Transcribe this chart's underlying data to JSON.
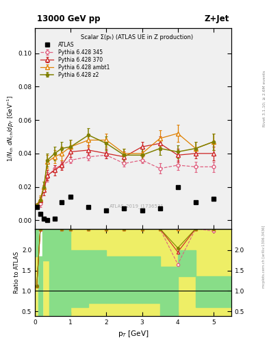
{
  "title_left": "13000 GeV pp",
  "title_right": "Z+Jet",
  "plot_title": "Scalar Σ(pₜ) (ATLAS UE in Z production)",
  "ylabel_main": "1/N$_{ch}$ dN$_{ch}$/dp$_T$ [GeV$^{-1}$]",
  "ylabel_ratio": "Ratio to ATLAS",
  "xlabel": "p$_T$ [GeV]",
  "right_label_top": "Rivet 3.1.10; ≥ 2.6M events",
  "watermark": "mcplots.cern.ch [arXiv:1306.3436]",
  "atlas_id": "ATLAS_2019_I1736531",
  "ylim_main": [
    -0.005,
    0.115
  ],
  "ylim_ratio": [
    0.39,
    2.52
  ],
  "yticks_main": [
    0.0,
    0.02,
    0.04,
    0.06,
    0.08,
    0.1
  ],
  "yticks_ratio": [
    0.5,
    1.0,
    1.5,
    2.0
  ],
  "xlim": [
    0.0,
    5.5
  ],
  "pt_atlas": [
    0.05,
    0.15,
    0.25,
    0.35,
    0.55,
    0.75,
    1.0,
    1.5,
    2.0,
    2.5,
    3.0,
    3.5,
    4.0,
    4.5,
    5.0
  ],
  "val_atlas": [
    0.008,
    0.004,
    0.001,
    0.0,
    0.001,
    0.011,
    0.014,
    0.008,
    0.006,
    0.007,
    0.006,
    0.007,
    0.02,
    0.011,
    0.013
  ],
  "pt_345": [
    0.05,
    0.15,
    0.25,
    0.35,
    0.55,
    0.75,
    1.0,
    1.5,
    2.0,
    2.5,
    3.0,
    3.5,
    4.0,
    4.5,
    5.0
  ],
  "val_345": [
    0.009,
    0.01,
    0.019,
    0.026,
    0.031,
    0.033,
    0.036,
    0.038,
    0.039,
    0.034,
    0.036,
    0.031,
    0.033,
    0.032,
    0.032
  ],
  "err_345": [
    0.001,
    0.002,
    0.002,
    0.003,
    0.002,
    0.002,
    0.002,
    0.002,
    0.002,
    0.002,
    0.002,
    0.003,
    0.003,
    0.003,
    0.003
  ],
  "pt_370": [
    0.05,
    0.15,
    0.25,
    0.35,
    0.55,
    0.75,
    1.0,
    1.5,
    2.0,
    2.5,
    3.0,
    3.5,
    4.0,
    4.5,
    5.0
  ],
  "val_370": [
    0.009,
    0.012,
    0.018,
    0.027,
    0.03,
    0.033,
    0.041,
    0.042,
    0.04,
    0.038,
    0.044,
    0.046,
    0.039,
    0.04,
    0.04
  ],
  "err_370": [
    0.001,
    0.002,
    0.003,
    0.003,
    0.003,
    0.003,
    0.003,
    0.003,
    0.003,
    0.003,
    0.003,
    0.004,
    0.004,
    0.003,
    0.004
  ],
  "pt_ambt1": [
    0.05,
    0.15,
    0.25,
    0.35,
    0.55,
    0.75,
    1.0,
    1.5,
    2.0,
    2.5,
    3.0,
    3.5,
    4.0,
    4.5,
    5.0
  ],
  "val_ambt1": [
    0.009,
    0.013,
    0.02,
    0.035,
    0.038,
    0.04,
    0.044,
    0.048,
    0.048,
    0.04,
    0.04,
    0.049,
    0.052,
    0.043,
    0.047
  ],
  "err_ambt1": [
    0.001,
    0.002,
    0.003,
    0.004,
    0.004,
    0.004,
    0.004,
    0.004,
    0.004,
    0.003,
    0.004,
    0.005,
    0.005,
    0.004,
    0.005
  ],
  "pt_z2": [
    0.05,
    0.15,
    0.25,
    0.35,
    0.55,
    0.75,
    1.0,
    1.5,
    2.0,
    2.5,
    3.0,
    3.5,
    4.0,
    4.5,
    5.0
  ],
  "val_z2": [
    0.009,
    0.012,
    0.02,
    0.036,
    0.04,
    0.043,
    0.044,
    0.051,
    0.046,
    0.039,
    0.039,
    0.043,
    0.041,
    0.043,
    0.047
  ],
  "err_z2": [
    0.001,
    0.002,
    0.003,
    0.004,
    0.004,
    0.004,
    0.004,
    0.004,
    0.004,
    0.004,
    0.004,
    0.004,
    0.004,
    0.004,
    0.005
  ],
  "color_atlas": "#000000",
  "color_345": "#e06080",
  "color_370": "#cc2222",
  "color_ambt1": "#e08000",
  "color_z2": "#808000",
  "bg_color": "#f0f0f0",
  "ratio_green": "#88dd88",
  "ratio_yellow": "#eeee66",
  "ratio_white": "#ffffff",
  "ratio_bins_x": [
    0.0,
    0.1,
    0.2,
    0.4,
    0.6,
    1.0,
    1.5,
    2.0,
    2.5,
    3.0,
    3.5,
    4.0,
    4.5,
    5.0,
    5.5
  ],
  "ratio_top_y": [
    2.52,
    2.52,
    2.52,
    2.52,
    2.52,
    2.52,
    2.52,
    2.52,
    2.52,
    2.52,
    2.52,
    2.52,
    2.52,
    2.52
  ],
  "ratio_g_lo": [
    0.39,
    0.39,
    0.39,
    0.7,
    0.7,
    0.7,
    0.7,
    0.7,
    0.7,
    0.7,
    0.7,
    1.6,
    1.3,
    1.3
  ],
  "ratio_g_hi": [
    1.85,
    1.85,
    1.85,
    2.52,
    2.52,
    2.0,
    2.0,
    1.85,
    1.85,
    1.85,
    1.85,
    2.0,
    2.0,
    2.52
  ],
  "ratio_y_lo": [
    0.39,
    0.39,
    0.39,
    0.39,
    0.39,
    0.39,
    0.39,
    0.39,
    0.39,
    0.39,
    0.39,
    0.39,
    0.39,
    0.39
  ],
  "ratio_y_hi": [
    2.52,
    2.52,
    2.52,
    2.52,
    2.52,
    2.52,
    2.52,
    2.52,
    2.52,
    2.52,
    2.52,
    2.52,
    2.52,
    2.52
  ]
}
